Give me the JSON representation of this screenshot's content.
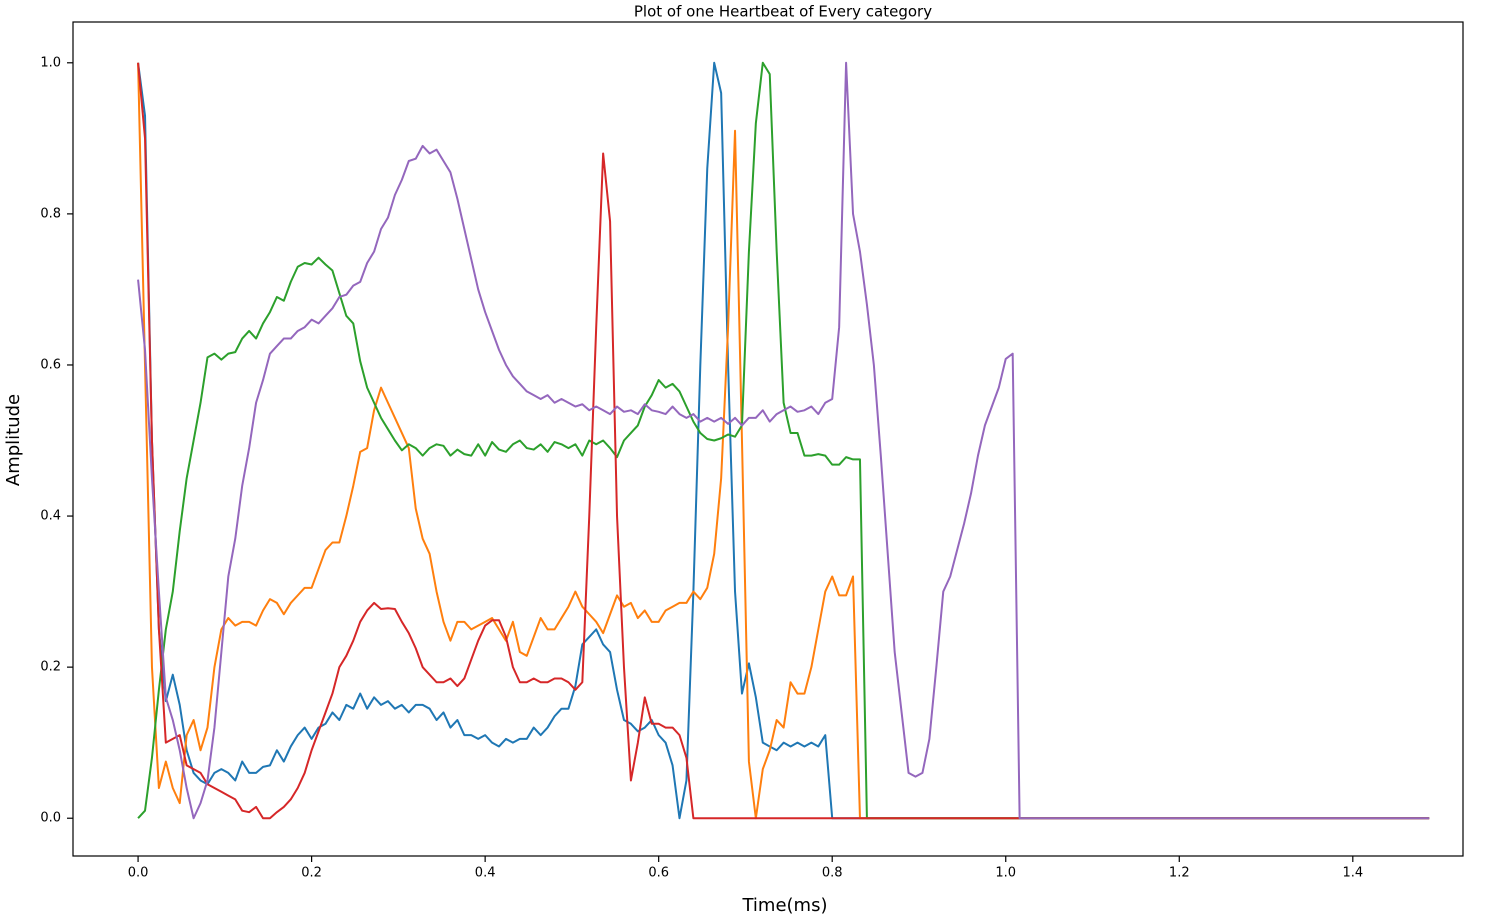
{
  "chart_data": {
    "type": "line",
    "title": "Plot of one Heartbeat of Every category",
    "xlabel": "Time(ms)",
    "ylabel": "Amplitude",
    "x": [
      0,
      0.008,
      0.016,
      0.024,
      0.032,
      0.04,
      0.048,
      0.056,
      0.064,
      0.072,
      0.08,
      0.088,
      0.096,
      0.104,
      0.112,
      0.12,
      0.128,
      0.136,
      0.144,
      0.152,
      0.16,
      0.168,
      0.176,
      0.184,
      0.192,
      0.2,
      0.208,
      0.216,
      0.224,
      0.232,
      0.24,
      0.248,
      0.256,
      0.264,
      0.272,
      0.28,
      0.288,
      0.296,
      0.304,
      0.312,
      0.32,
      0.328,
      0.336,
      0.344,
      0.352,
      0.36,
      0.368,
      0.376,
      0.384,
      0.392,
      0.4,
      0.408,
      0.416,
      0.424,
      0.432,
      0.44,
      0.448,
      0.456,
      0.464,
      0.472,
      0.48,
      0.488,
      0.496,
      0.504,
      0.512,
      0.52,
      0.528,
      0.536,
      0.544,
      0.552,
      0.56,
      0.568,
      0.576,
      0.584,
      0.592,
      0.6,
      0.608,
      0.616,
      0.624,
      0.632,
      0.64,
      0.648,
      0.656,
      0.664,
      0.672,
      0.68,
      0.688,
      0.696,
      0.704,
      0.712,
      0.72,
      0.728,
      0.736,
      0.744,
      0.752,
      0.76,
      0.768,
      0.776,
      0.784,
      0.792,
      0.8,
      0.808,
      0.816,
      0.824,
      0.832,
      0.84,
      0.848,
      0.856,
      0.864,
      0.872,
      0.88,
      0.888,
      0.896,
      0.904,
      0.912,
      0.92,
      0.928,
      0.936,
      0.944,
      0.952,
      0.96,
      0.968,
      0.976,
      0.984,
      0.992,
      1,
      1.008,
      1.016,
      1.488
    ],
    "series": [
      {
        "color": "#1f77b4",
        "values": [
          1.0,
          0.93,
          0.5,
          0.25,
          0.155,
          0.19,
          0.15,
          0.09,
          0.06,
          0.05,
          0.045,
          0.06,
          0.065,
          0.06,
          0.05,
          0.075,
          0.06,
          0.06,
          0.068,
          0.07,
          0.09,
          0.075,
          0.095,
          0.11,
          0.12,
          0.105,
          0.12,
          0.125,
          0.14,
          0.13,
          0.15,
          0.145,
          0.165,
          0.145,
          0.16,
          0.15,
          0.155,
          0.145,
          0.15,
          0.14,
          0.15,
          0.15,
          0.145,
          0.13,
          0.14,
          0.12,
          0.13,
          0.11,
          0.11,
          0.105,
          0.11,
          0.1,
          0.095,
          0.105,
          0.1,
          0.105,
          0.105,
          0.12,
          0.11,
          0.12,
          0.135,
          0.145,
          0.145,
          0.175,
          0.23,
          0.24,
          0.25,
          0.23,
          0.22,
          0.17,
          0.13,
          0.125,
          0.115,
          0.12,
          0.13,
          0.11,
          0.1,
          0.07,
          0,
          0.05,
          0.3,
          0.6,
          0.86,
          1.0,
          0.96,
          0.6,
          0.3,
          0.165,
          0.205,
          0.16,
          0.1,
          0.095,
          0.09,
          0.1,
          0.095,
          0.1,
          0.095,
          0.1,
          0.095,
          0.11,
          0,
          0,
          0,
          0,
          0,
          0,
          0,
          0,
          0,
          0,
          0,
          0,
          0,
          0,
          0,
          0,
          0,
          0,
          0,
          0,
          0,
          0,
          0,
          0,
          0,
          0,
          0,
          0,
          0
        ]
      },
      {
        "color": "#ff7f0e",
        "values": [
          1.0,
          0.6,
          0.2,
          0.04,
          0.075,
          0.04,
          0.02,
          0.11,
          0.13,
          0.09,
          0.12,
          0.2,
          0.25,
          0.265,
          0.255,
          0.26,
          0.26,
          0.255,
          0.275,
          0.29,
          0.285,
          0.27,
          0.285,
          0.295,
          0.305,
          0.305,
          0.33,
          0.355,
          0.365,
          0.365,
          0.4,
          0.44,
          0.485,
          0.49,
          0.54,
          0.57,
          0.55,
          0.53,
          0.51,
          0.49,
          0.41,
          0.37,
          0.35,
          0.3,
          0.26,
          0.235,
          0.26,
          0.26,
          0.25,
          0.255,
          0.26,
          0.265,
          0.25,
          0.235,
          0.26,
          0.22,
          0.215,
          0.24,
          0.265,
          0.25,
          0.25,
          0.265,
          0.28,
          0.3,
          0.28,
          0.27,
          0.26,
          0.245,
          0.27,
          0.295,
          0.28,
          0.285,
          0.265,
          0.275,
          0.26,
          0.26,
          0.275,
          0.28,
          0.285,
          0.285,
          0.3,
          0.29,
          0.305,
          0.35,
          0.45,
          0.65,
          0.91,
          0.5,
          0.075,
          0,
          0.065,
          0.09,
          0.13,
          0.12,
          0.18,
          0.165,
          0.165,
          0.2,
          0.25,
          0.3,
          0.32,
          0.295,
          0.295,
          0.32,
          0,
          0,
          0,
          0,
          0,
          0,
          0,
          0,
          0,
          0,
          0,
          0,
          0,
          0,
          0,
          0,
          0,
          0,
          0,
          0,
          0,
          0,
          0,
          0,
          0
        ]
      },
      {
        "color": "#2ca02c",
        "values": [
          0,
          0.01,
          0.08,
          0.17,
          0.25,
          0.3,
          0.38,
          0.45,
          0.5,
          0.55,
          0.61,
          0.615,
          0.607,
          0.615,
          0.617,
          0.635,
          0.645,
          0.635,
          0.655,
          0.67,
          0.69,
          0.685,
          0.71,
          0.73,
          0.735,
          0.733,
          0.742,
          0.733,
          0.725,
          0.695,
          0.665,
          0.655,
          0.605,
          0.57,
          0.55,
          0.53,
          0.515,
          0.5,
          0.487,
          0.495,
          0.49,
          0.48,
          0.49,
          0.495,
          0.493,
          0.48,
          0.488,
          0.482,
          0.48,
          0.495,
          0.48,
          0.498,
          0.488,
          0.485,
          0.495,
          0.5,
          0.49,
          0.488,
          0.495,
          0.485,
          0.498,
          0.495,
          0.49,
          0.495,
          0.48,
          0.5,
          0.495,
          0.5,
          0.49,
          0.478,
          0.5,
          0.51,
          0.52,
          0.545,
          0.56,
          0.58,
          0.57,
          0.575,
          0.565,
          0.545,
          0.525,
          0.51,
          0.502,
          0.5,
          0.503,
          0.508,
          0.505,
          0.52,
          0.75,
          0.92,
          1.0,
          0.985,
          0.75,
          0.55,
          0.51,
          0.51,
          0.48,
          0.48,
          0.482,
          0.48,
          0.468,
          0.468,
          0.478,
          0.475,
          0.475,
          0,
          0,
          0,
          0,
          0,
          0,
          0,
          0,
          0,
          0,
          0,
          0,
          0,
          0,
          0,
          0,
          0,
          0,
          0,
          0,
          0,
          0,
          0,
          0
        ]
      },
      {
        "color": "#d62728",
        "values": [
          1.0,
          0.9,
          0.5,
          0.25,
          0.1,
          0.105,
          0.11,
          0.07,
          0.065,
          0.06,
          0.045,
          0.04,
          0.035,
          0.03,
          0.025,
          0.01,
          0.008,
          0.015,
          0,
          0,
          0.008,
          0.015,
          0.025,
          0.04,
          0.06,
          0.09,
          0.115,
          0.14,
          0.165,
          0.2,
          0.215,
          0.235,
          0.26,
          0.275,
          0.285,
          0.277,
          0.278,
          0.277,
          0.26,
          0.245,
          0.225,
          0.2,
          0.19,
          0.18,
          0.18,
          0.185,
          0.175,
          0.185,
          0.21,
          0.235,
          0.255,
          0.262,
          0.262,
          0.24,
          0.2,
          0.18,
          0.18,
          0.185,
          0.18,
          0.18,
          0.185,
          0.185,
          0.18,
          0.17,
          0.18,
          0.4,
          0.65,
          0.88,
          0.79,
          0.4,
          0.2,
          0.05,
          0.1,
          0.16,
          0.125,
          0.125,
          0.12,
          0.12,
          0.11,
          0.08,
          0,
          0,
          0,
          0,
          0,
          0,
          0,
          0,
          0,
          0,
          0,
          0,
          0,
          0,
          0,
          0,
          0,
          0,
          0,
          0,
          0,
          0,
          0,
          0,
          0,
          0,
          0,
          0,
          0,
          0,
          0,
          0,
          0,
          0,
          0,
          0,
          0,
          0,
          0,
          0,
          0,
          0,
          0,
          0,
          0,
          0,
          0,
          0,
          0
        ]
      },
      {
        "color": "#9467bd",
        "values": [
          0.713,
          0.62,
          0.45,
          0.3,
          0.16,
          0.13,
          0.09,
          0.04,
          0,
          0.02,
          0.05,
          0.12,
          0.22,
          0.32,
          0.37,
          0.44,
          0.49,
          0.55,
          0.58,
          0.615,
          0.625,
          0.635,
          0.635,
          0.645,
          0.65,
          0.66,
          0.655,
          0.665,
          0.675,
          0.69,
          0.693,
          0.705,
          0.71,
          0.735,
          0.75,
          0.78,
          0.795,
          0.825,
          0.845,
          0.87,
          0.873,
          0.89,
          0.88,
          0.885,
          0.87,
          0.855,
          0.82,
          0.78,
          0.74,
          0.7,
          0.67,
          0.645,
          0.62,
          0.6,
          0.585,
          0.575,
          0.565,
          0.56,
          0.555,
          0.56,
          0.55,
          0.555,
          0.55,
          0.545,
          0.548,
          0.54,
          0.545,
          0.54,
          0.535,
          0.545,
          0.538,
          0.54,
          0.535,
          0.548,
          0.54,
          0.538,
          0.535,
          0.545,
          0.535,
          0.53,
          0.535,
          0.525,
          0.53,
          0.525,
          0.53,
          0.522,
          0.53,
          0.52,
          0.53,
          0.53,
          0.54,
          0.525,
          0.535,
          0.54,
          0.545,
          0.538,
          0.54,
          0.545,
          0.535,
          0.55,
          0.555,
          0.65,
          1.0,
          0.8,
          0.75,
          0.68,
          0.6,
          0.48,
          0.35,
          0.22,
          0.14,
          0.06,
          0.055,
          0.06,
          0.105,
          0.2,
          0.3,
          0.32,
          0.355,
          0.39,
          0.43,
          0.48,
          0.52,
          0.545,
          0.57,
          0.608,
          0.615,
          0,
          0
        ]
      }
    ],
    "xlim": [
      -0.075,
      1.527
    ],
    "ylim": [
      -0.05,
      1.054
    ],
    "xticks": [
      {
        "value": 0,
        "label": "0.0"
      },
      0.2,
      0.4,
      0.6,
      0.8,
      {
        "value": 1,
        "label": "1.0"
      },
      1.2,
      1.4
    ],
    "yticks": [
      {
        "value": 0,
        "label": "0.0"
      },
      0.2,
      0.4,
      0.6,
      0.8,
      {
        "value": 1,
        "label": "1.0"
      }
    ]
  }
}
